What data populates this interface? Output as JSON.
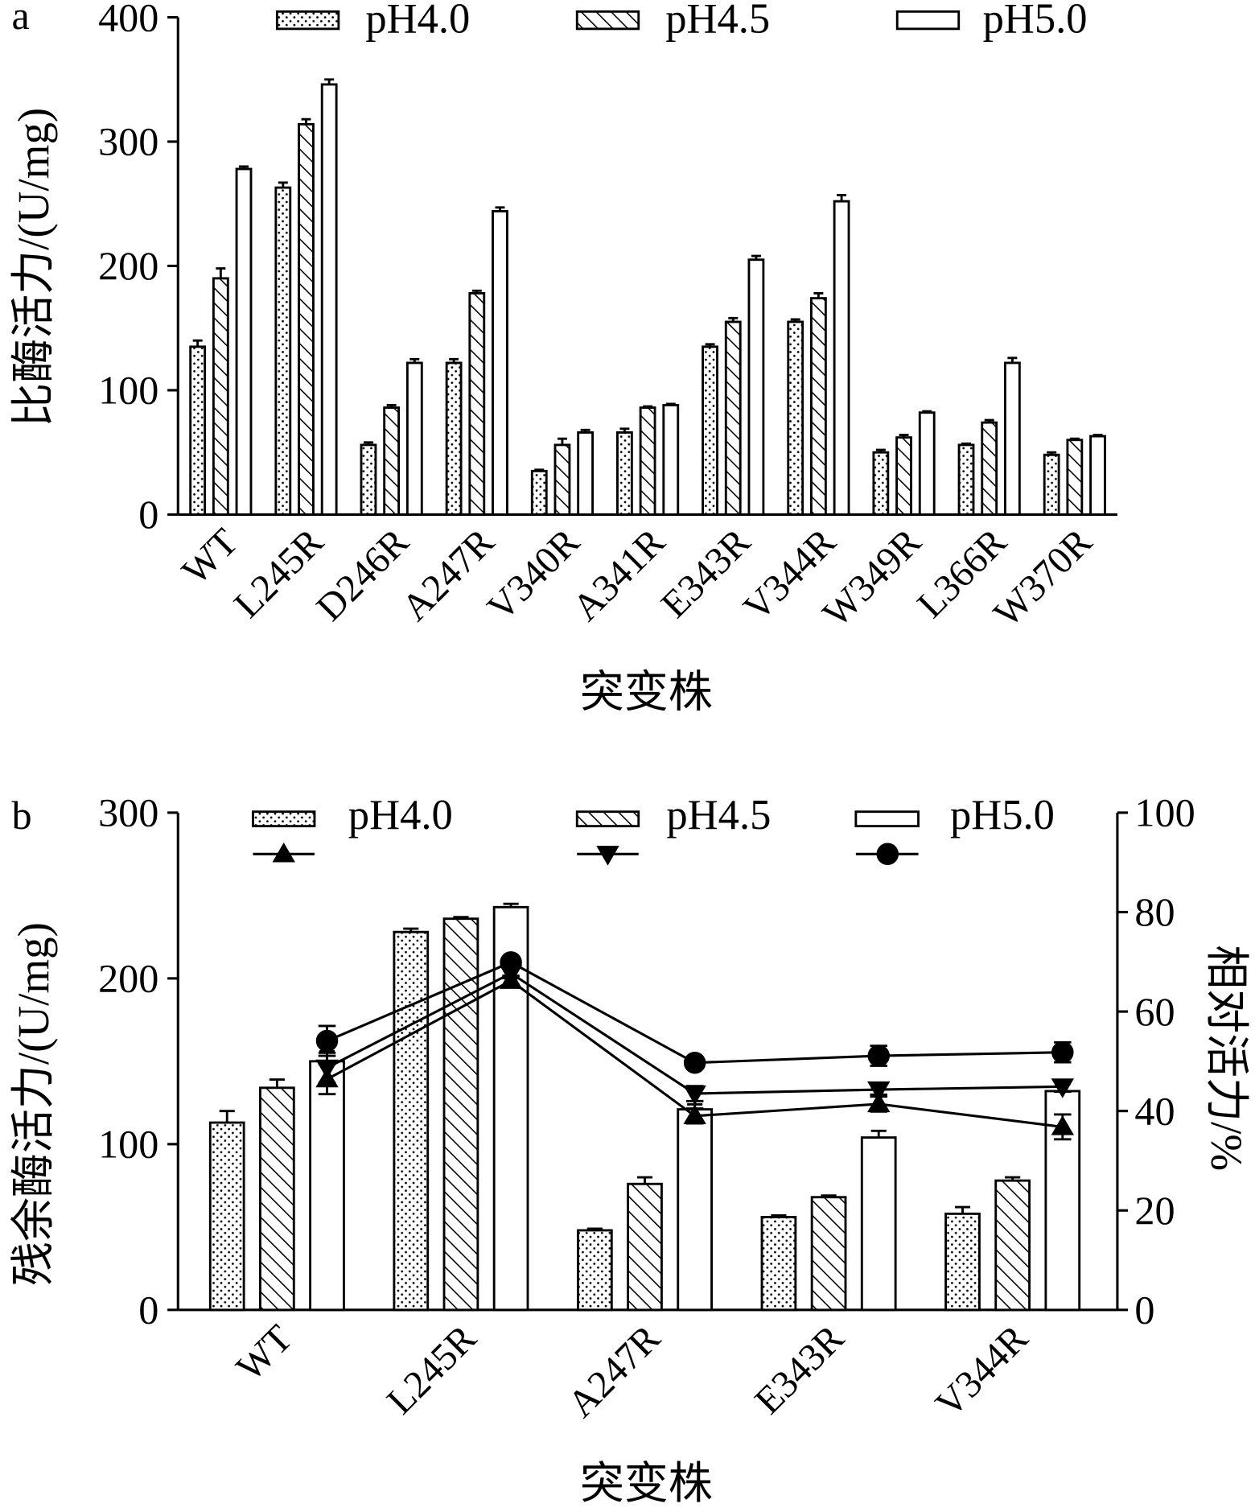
{
  "chart_data": [
    {
      "panel_label": "a",
      "type": "bar",
      "categories": [
        "WT",
        "L245R",
        "D246R",
        "A247R",
        "V340R",
        "A341R",
        "E343R",
        "V344R",
        "W349R",
        "L366R",
        "W370R"
      ],
      "series": [
        {
          "name": "pH4.0",
          "fill_pattern": "dots",
          "values": [
            135,
            263,
            56,
            122,
            35,
            66,
            135,
            155,
            50,
            56,
            48
          ],
          "errors": [
            5,
            4,
            2,
            3,
            1,
            3,
            2,
            2,
            2,
            1,
            2
          ]
        },
        {
          "name": "pH4.5",
          "fill_pattern": "hatch",
          "values": [
            190,
            314,
            86,
            178,
            56,
            86,
            155,
            174,
            62,
            74,
            60
          ],
          "errors": [
            8,
            4,
            2,
            2,
            5,
            1,
            3,
            4,
            2,
            2,
            1
          ]
        },
        {
          "name": "pH5.0",
          "fill_pattern": "none",
          "values": [
            278,
            346,
            122,
            244,
            66,
            88,
            205,
            252,
            82,
            122,
            63
          ],
          "errors": [
            2,
            4,
            3,
            3,
            2,
            1,
            3,
            5,
            1,
            4,
            1
          ]
        }
      ],
      "xlabel": "突变株",
      "ylabel": "比酶活力/(U/mg)",
      "ylim": [
        0,
        400
      ],
      "yticks": [
        0,
        100,
        200,
        300,
        400
      ],
      "grid": false,
      "legend": "top"
    },
    {
      "panel_label": "b",
      "type": "bar",
      "categories": [
        "WT",
        "L245R",
        "A247R",
        "E343R",
        "V344R"
      ],
      "series": [
        {
          "name": "pH4.0",
          "fill_pattern": "dots",
          "values": [
            113,
            228,
            48,
            56,
            58
          ],
          "errors": [
            7,
            2,
            1,
            1,
            4
          ]
        },
        {
          "name": "pH4.5",
          "fill_pattern": "hatch",
          "values": [
            134,
            236,
            76,
            68,
            78
          ],
          "errors": [
            5,
            1,
            4,
            1,
            2
          ]
        },
        {
          "name": "pH5.0",
          "fill_pattern": "none",
          "values": [
            150,
            243,
            121,
            104,
            132
          ],
          "errors": [
            6,
            2,
            3,
            4,
            4
          ]
        }
      ],
      "line_series": [
        {
          "type": "line",
          "marker": "triangle-up",
          "values": [
            46.4,
            66.2,
            39.0,
            41.4,
            36.8
          ],
          "errors": [
            3,
            1,
            1.5,
            1.5,
            2.5
          ]
        },
        {
          "type": "line",
          "marker": "triangle-down",
          "values": [
            48.7,
            67.7,
            43.5,
            44.3,
            44.9
          ],
          "errors": [
            3,
            1,
            1.5,
            1,
            1
          ]
        },
        {
          "type": "line",
          "marker": "circle",
          "values": [
            54.1,
            69.9,
            49.7,
            51.1,
            51.8
          ],
          "errors": [
            3,
            1,
            1,
            2,
            2
          ]
        }
      ],
      "xlabel": "突变株",
      "ylabel": "残余酶活力/(U/mg)",
      "y2label": "相对活力/%",
      "ylim": [
        0,
        300
      ],
      "yticks": [
        0,
        100,
        200,
        300
      ],
      "y2lim": [
        0,
        100
      ],
      "y2ticks": [
        0,
        20,
        40,
        60,
        80,
        100
      ],
      "grid": false,
      "legend": "top"
    }
  ]
}
